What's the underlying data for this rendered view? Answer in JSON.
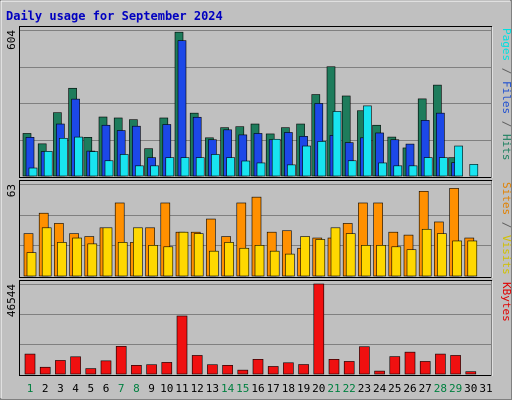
{
  "chart_data": {
    "type": "bar",
    "title": "Daily usage for September 2024",
    "days": [
      "1",
      "2",
      "3",
      "4",
      "5",
      "6",
      "7",
      "8",
      "9",
      "10",
      "11",
      "12",
      "13",
      "14",
      "15",
      "16",
      "17",
      "18",
      "19",
      "20",
      "21",
      "22",
      "23",
      "24",
      "25",
      "26",
      "27",
      "28",
      "29",
      "30",
      "31"
    ],
    "weekend_days": [
      "1",
      "7",
      "8",
      "14",
      "15",
      "21",
      "22",
      "28",
      "29"
    ],
    "panels": [
      {
        "id": "pages-files-hits",
        "ymax_label": "604",
        "ymax": 604,
        "axis_label_parts": [
          {
            "text": "Pages",
            "color": "#00e0e0"
          },
          {
            "text": " / ",
            "color": "#606060"
          },
          {
            "text": "Files",
            "color": "#2050d0"
          },
          {
            "text": " / ",
            "color": "#606060"
          },
          {
            "text": "Hits",
            "color": "#1e8060"
          }
        ],
        "series": [
          {
            "name": "Hits",
            "color": "#1e7c5c",
            "values": [
              176,
              133,
              262,
              363,
              160,
              244,
              240,
              233,
              113,
              240,
              595,
              260,
              158,
              200,
              204,
              215,
              174,
              200,
              215,
              337,
              452,
              331,
              270,
              210,
              161,
              116,
              319,
              376,
              76,
              0,
              0
            ]
          },
          {
            "name": "Files",
            "color": "#1c48e8",
            "values": [
              160,
              101,
              215,
              318,
              103,
              210,
              188,
              206,
              76,
              213,
              560,
              243,
              150,
              191,
              170,
              176,
              150,
              180,
              164,
              300,
              168,
              138,
              158,
              178,
              150,
              132,
              230,
              260,
              55,
              0,
              0
            ]
          },
          {
            "name": "Pages",
            "color": "#18e4f0",
            "values": [
              33,
              102,
              156,
              161,
              101,
              63,
              89,
              42,
              42,
              76,
              76,
              76,
              89,
              76,
              62,
              54,
              152,
              46,
              124,
              143,
              267,
              63,
              290,
              54,
              42,
              42,
              76,
              76,
              124,
              48,
              0
            ]
          }
        ]
      },
      {
        "id": "sites-visits",
        "ymax_label": "63",
        "ymax": 63,
        "axis_label_parts": [
          {
            "text": "Sites",
            "color": "#e08000"
          },
          {
            "text": " / ",
            "color": "#606060"
          },
          {
            "text": "Visits",
            "color": "#d0c000"
          }
        ],
        "series": [
          {
            "name": "Visits",
            "color": "#ff9000",
            "values": [
              29,
              43,
              36,
              29,
              27,
              33,
              50,
              23,
              33,
              50,
              30,
              30,
              39,
              27,
              50,
              54,
              30,
              31,
              19,
              26,
              26,
              36,
              50,
              50,
              30,
              28,
              58,
              37,
              60,
              26,
              0
            ]
          },
          {
            "name": "Sites",
            "color": "#ffd800",
            "values": [
              16,
              33,
              23,
              26,
              22,
              33,
              23,
              33,
              21,
              20,
              30,
              29,
              17,
              23,
              19,
              21,
              17,
              15,
              27,
              25,
              33,
              29,
              21,
              21,
              20,
              18,
              32,
              29,
              24,
              24,
              0
            ]
          }
        ]
      },
      {
        "id": "kbytes",
        "ymax_label": "46544",
        "ymax": 46544,
        "axis_label_parts": [
          {
            "text": "KBytes",
            "color": "#e00000"
          }
        ],
        "series": [
          {
            "name": "KBytes",
            "color": "#f01010",
            "values": [
              10300,
              3500,
              7000,
              8900,
              2800,
              6800,
              14300,
              4500,
              4800,
              6000,
              30000,
              9600,
              4800,
              4500,
              2000,
              7600,
              3900,
              5800,
              4900,
              46544,
              7600,
              6500,
              14100,
              1500,
              9000,
              11300,
              6500,
              10300,
              9600,
              1200,
              0
            ]
          }
        ]
      }
    ]
  }
}
